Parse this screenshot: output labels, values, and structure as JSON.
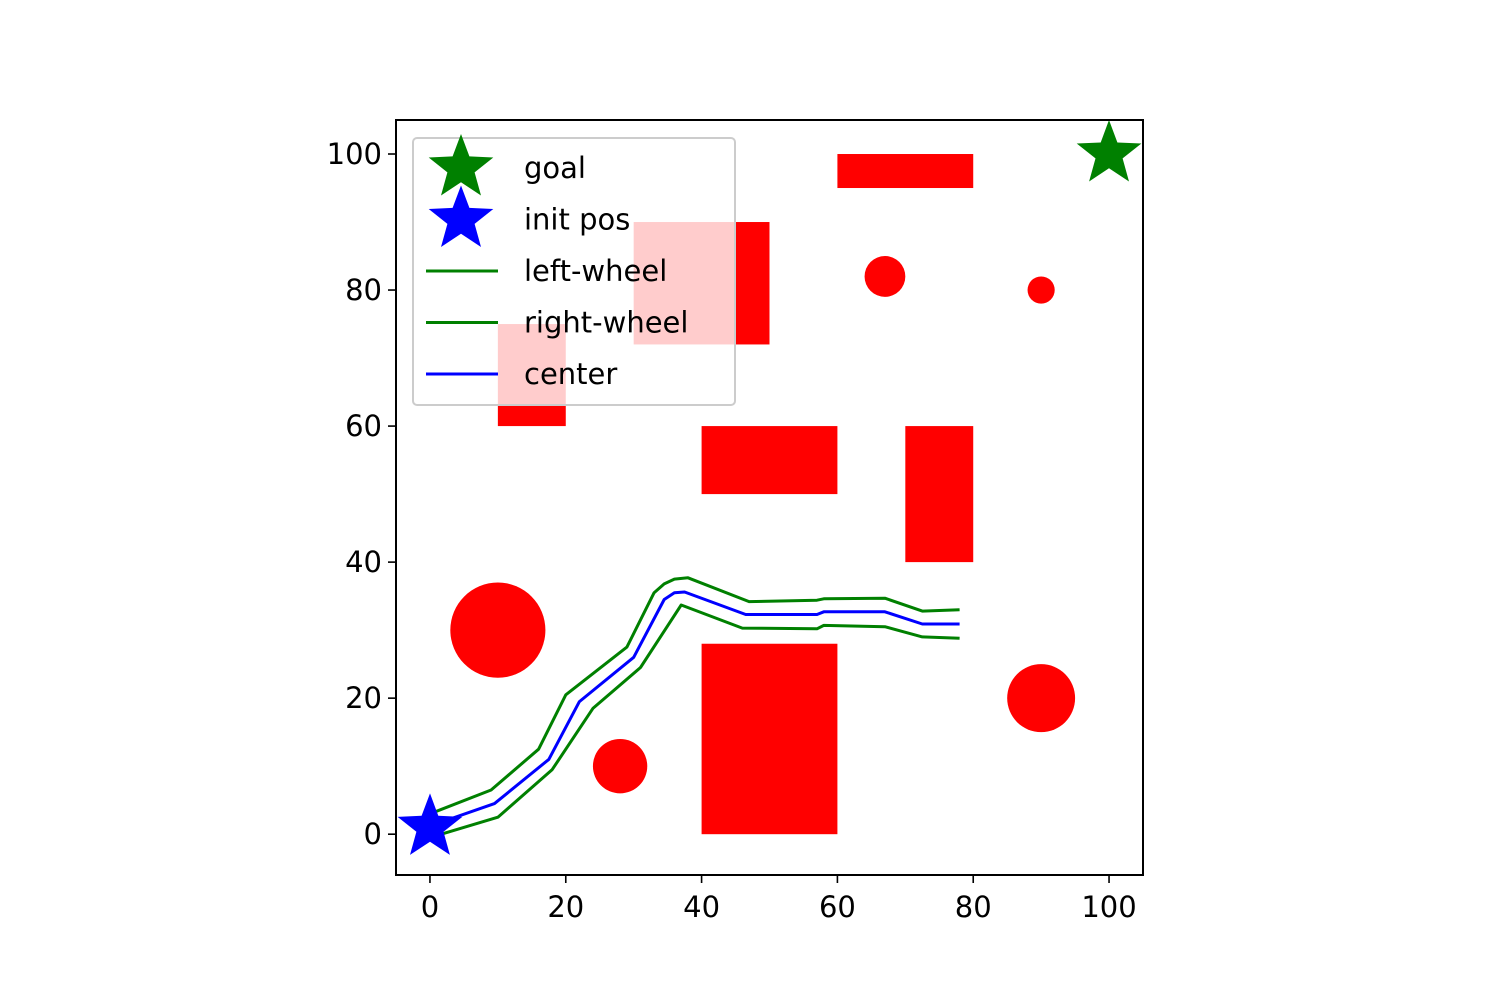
{
  "chart_data": {
    "type": "scatter",
    "title": "",
    "xlabel": "",
    "ylabel": "",
    "xlim": [
      -5,
      105
    ],
    "ylim": [
      -6,
      105
    ],
    "x_ticks": [
      0,
      20,
      40,
      60,
      80,
      100
    ],
    "y_ticks": [
      0,
      20,
      40,
      60,
      80,
      100
    ],
    "grid": false,
    "legend_placement": "top-left",
    "colors": {
      "obstacle": "#ff0000",
      "goal": "#008000",
      "init": "#0000ff",
      "wheel": "#008000",
      "center": "#0000ff"
    },
    "obstacles": {
      "rectangles": [
        {
          "x": 40,
          "y": 0,
          "w": 20,
          "h": 28
        },
        {
          "x": 40,
          "y": 50,
          "w": 20,
          "h": 10
        },
        {
          "x": 70,
          "y": 40,
          "w": 10,
          "h": 20
        },
        {
          "x": 60,
          "y": 95,
          "w": 20,
          "h": 5
        },
        {
          "x": 10,
          "y": 60,
          "w": 10,
          "h": 15
        },
        {
          "x": 30,
          "y": 72,
          "w": 20,
          "h": 18
        }
      ],
      "circles": [
        {
          "cx": 10,
          "cy": 30,
          "r": 7
        },
        {
          "cx": 28,
          "cy": 10,
          "r": 4
        },
        {
          "cx": 90,
          "cy": 20,
          "r": 5
        },
        {
          "cx": 67,
          "cy": 82,
          "r": 3
        },
        {
          "cx": 90,
          "cy": 80,
          "r": 2
        }
      ]
    },
    "goal": {
      "x": 100,
      "y": 100
    },
    "init_pos": {
      "x": 0,
      "y": 1
    },
    "series": [
      {
        "name": "left-wheel",
        "x": [
          0,
          9,
          16,
          20,
          29,
          33,
          34.5,
          36,
          38,
          47,
          57,
          58,
          67,
          72.5,
          78
        ],
        "y": [
          3,
          6.5,
          12.5,
          20.5,
          27.5,
          35.5,
          36.8,
          37.5,
          37.7,
          34.2,
          34.4,
          34.6,
          34.7,
          32.8,
          33
        ]
      },
      {
        "name": "right-wheel",
        "x": [
          0,
          10,
          18,
          24,
          31,
          37,
          46,
          57,
          58,
          67,
          72.5,
          78
        ],
        "y": [
          -0.5,
          2.5,
          9.5,
          18.5,
          24.5,
          33.7,
          30.3,
          30.2,
          30.7,
          30.5,
          29,
          28.8
        ]
      },
      {
        "name": "center",
        "x": [
          0,
          9.5,
          17.5,
          22,
          30,
          34.5,
          36,
          37.5,
          46.5,
          57,
          58,
          67,
          72.5,
          78
        ],
        "y": [
          1.2,
          4.5,
          11,
          19.5,
          26,
          34.5,
          35.5,
          35.6,
          32.3,
          32.3,
          32.7,
          32.7,
          30.9,
          30.9
        ]
      }
    ],
    "legend": [
      {
        "label": "goal",
        "marker": "star",
        "color": "#008000"
      },
      {
        "label": "init pos",
        "marker": "star",
        "color": "#0000ff"
      },
      {
        "label": "left-wheel",
        "marker": "line",
        "color": "#008000"
      },
      {
        "label": "right-wheel",
        "marker": "line",
        "color": "#008000"
      },
      {
        "label": "center",
        "marker": "line",
        "color": "#0000ff"
      }
    ]
  }
}
